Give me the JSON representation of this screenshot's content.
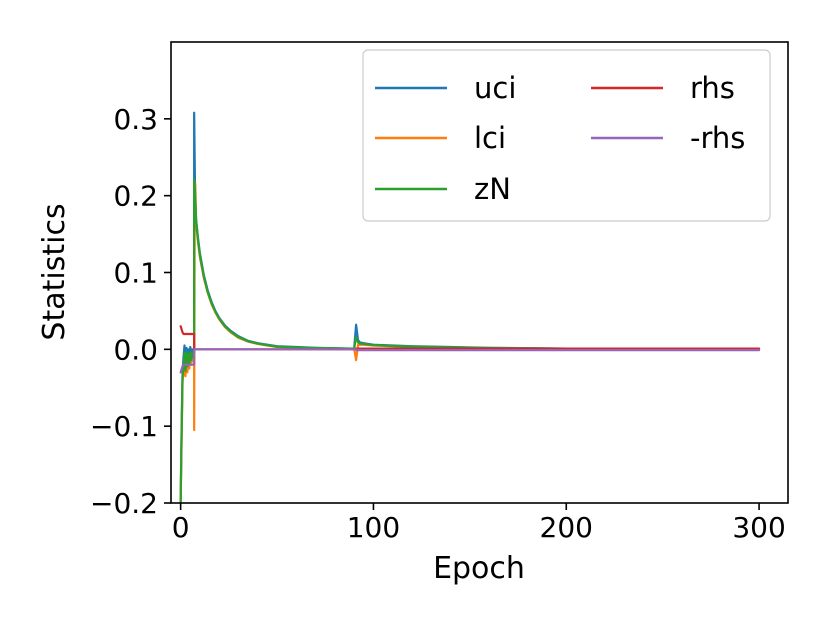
{
  "chart_data": {
    "type": "line",
    "xlabel": "Epoch",
    "ylabel": "Statistics",
    "xlim": [
      -5,
      315
    ],
    "ylim": [
      -0.2,
      0.4
    ],
    "xticks": [
      0,
      100,
      200,
      300
    ],
    "yticks": [
      -0.2,
      -0.1,
      0.0,
      0.1,
      0.2,
      0.3
    ],
    "xtick_labels": [
      "0",
      "100",
      "200",
      "300"
    ],
    "ytick_labels": [
      "−0.2",
      "−0.1",
      "0.0",
      "0.1",
      "0.2",
      "0.3"
    ],
    "grid": false,
    "legend": {
      "placement": "top-right",
      "columns": 2
    },
    "series": [
      {
        "name": "uci",
        "color": "#1f77b4",
        "points": [
          [
            0,
            -0.2
          ],
          [
            0.5,
            -0.1
          ],
          [
            1,
            -0.03
          ],
          [
            1.5,
            -0.01
          ],
          [
            2,
            0.005
          ],
          [
            2.5,
            -0.02
          ],
          [
            3,
            0.002
          ],
          [
            3.5,
            -0.015
          ],
          [
            4,
            0.0
          ],
          [
            4.5,
            -0.01
          ],
          [
            5,
            0.003
          ],
          [
            5.5,
            -0.008
          ],
          [
            6,
            0.0
          ],
          [
            6.5,
            -0.005
          ],
          [
            7,
            0.0
          ],
          [
            7.01,
            0.308
          ],
          [
            7.5,
            0.2
          ],
          [
            8,
            0.17
          ],
          [
            9,
            0.145
          ],
          [
            10,
            0.125
          ],
          [
            12,
            0.097
          ],
          [
            14,
            0.077
          ],
          [
            16,
            0.062
          ],
          [
            18,
            0.05
          ],
          [
            20,
            0.041
          ],
          [
            23,
            0.031
          ],
          [
            26,
            0.024
          ],
          [
            30,
            0.017
          ],
          [
            35,
            0.011
          ],
          [
            40,
            0.008
          ],
          [
            45,
            0.006
          ],
          [
            50,
            0.004
          ],
          [
            60,
            0.003
          ],
          [
            70,
            0.002
          ],
          [
            80,
            0.0015
          ],
          [
            90,
            0.001
          ],
          [
            91,
            0.032
          ],
          [
            92,
            0.012
          ],
          [
            93,
            0.009
          ],
          [
            95,
            0.008
          ],
          [
            100,
            0.006
          ],
          [
            110,
            0.005
          ],
          [
            120,
            0.004
          ],
          [
            140,
            0.003
          ],
          [
            160,
            0.002
          ],
          [
            200,
            0.001
          ],
          [
            250,
            0.0008
          ],
          [
            300,
            0.0005
          ]
        ]
      },
      {
        "name": "lci",
        "color": "#ff7f0e",
        "points": [
          [
            0,
            -0.2
          ],
          [
            0.5,
            -0.12
          ],
          [
            1,
            -0.04
          ],
          [
            1.5,
            -0.03
          ],
          [
            2,
            -0.015
          ],
          [
            2.5,
            -0.035
          ],
          [
            3,
            -0.01
          ],
          [
            3.5,
            -0.03
          ],
          [
            4,
            -0.012
          ],
          [
            4.5,
            -0.025
          ],
          [
            5,
            -0.01
          ],
          [
            5.5,
            -0.02
          ],
          [
            6,
            -0.008
          ],
          [
            6.5,
            -0.015
          ],
          [
            7,
            -0.01
          ],
          [
            7.01,
            -0.105
          ],
          [
            7.3,
            0.2
          ],
          [
            7.6,
            0.215
          ],
          [
            8,
            0.165
          ],
          [
            9,
            0.14
          ],
          [
            10,
            0.12
          ],
          [
            12,
            0.093
          ],
          [
            14,
            0.074
          ],
          [
            16,
            0.059
          ],
          [
            18,
            0.048
          ],
          [
            20,
            0.039
          ],
          [
            23,
            0.029
          ],
          [
            26,
            0.022
          ],
          [
            30,
            0.015
          ],
          [
            35,
            0.01
          ],
          [
            40,
            0.007
          ],
          [
            45,
            0.005
          ],
          [
            50,
            0.003
          ],
          [
            60,
            0.002
          ],
          [
            70,
            0.0015
          ],
          [
            80,
            0.001
          ],
          [
            90,
            0.0005
          ],
          [
            91,
            -0.014
          ],
          [
            92,
            0.006
          ],
          [
            93,
            0.006
          ],
          [
            95,
            0.006
          ],
          [
            100,
            0.005
          ],
          [
            110,
            0.004
          ],
          [
            120,
            0.003
          ],
          [
            140,
            0.002
          ],
          [
            160,
            0.0015
          ],
          [
            200,
            0.0008
          ],
          [
            250,
            0.0005
          ],
          [
            300,
            0.0003
          ]
        ]
      },
      {
        "name": "zN",
        "color": "#2ca02c",
        "points": [
          [
            0,
            -0.2
          ],
          [
            0.5,
            -0.11
          ],
          [
            1,
            -0.035
          ],
          [
            1.5,
            -0.02
          ],
          [
            2,
            -0.005
          ],
          [
            2.5,
            -0.028
          ],
          [
            3,
            -0.004
          ],
          [
            3.5,
            -0.022
          ],
          [
            4,
            -0.006
          ],
          [
            4.5,
            -0.018
          ],
          [
            5,
            -0.004
          ],
          [
            5.5,
            -0.014
          ],
          [
            6,
            -0.004
          ],
          [
            6.5,
            -0.01
          ],
          [
            7,
            -0.005
          ],
          [
            7.01,
            0.222
          ],
          [
            7.5,
            0.205
          ],
          [
            8,
            0.168
          ],
          [
            9,
            0.143
          ],
          [
            10,
            0.122
          ],
          [
            12,
            0.095
          ],
          [
            14,
            0.075
          ],
          [
            16,
            0.06
          ],
          [
            18,
            0.049
          ],
          [
            20,
            0.04
          ],
          [
            23,
            0.03
          ],
          [
            26,
            0.023
          ],
          [
            30,
            0.016
          ],
          [
            35,
            0.0105
          ],
          [
            40,
            0.0075
          ],
          [
            45,
            0.0055
          ],
          [
            50,
            0.0035
          ],
          [
            60,
            0.0025
          ],
          [
            70,
            0.0018
          ],
          [
            80,
            0.0012
          ],
          [
            90,
            0.0008
          ],
          [
            91,
            0.016
          ],
          [
            92,
            0.009
          ],
          [
            93,
            0.0075
          ],
          [
            95,
            0.007
          ],
          [
            100,
            0.0055
          ],
          [
            110,
            0.0045
          ],
          [
            120,
            0.0035
          ],
          [
            140,
            0.0025
          ],
          [
            160,
            0.0018
          ],
          [
            200,
            0.0009
          ],
          [
            250,
            0.0006
          ],
          [
            300,
            0.0004
          ]
        ]
      },
      {
        "name": "rhs",
        "color": "#d62728",
        "points": [
          [
            0,
            0.03
          ],
          [
            0.01,
            0.03
          ],
          [
            1,
            0.022
          ],
          [
            1.5,
            0.02
          ],
          [
            6.5,
            0.02
          ],
          [
            7,
            0.02
          ],
          [
            7.01,
            0.0
          ],
          [
            91,
            0.0
          ],
          [
            91.01,
            0.001
          ],
          [
            300,
            0.001
          ]
        ]
      },
      {
        "name": "-rhs",
        "color": "#9467bd",
        "points": [
          [
            0,
            -0.03
          ],
          [
            0.01,
            -0.03
          ],
          [
            1,
            -0.022
          ],
          [
            1.5,
            -0.02
          ],
          [
            6.5,
            -0.02
          ],
          [
            7,
            -0.02
          ],
          [
            7.01,
            0.0
          ],
          [
            91,
            0.0
          ],
          [
            91.01,
            -0.001
          ],
          [
            300,
            -0.001
          ]
        ]
      }
    ]
  }
}
